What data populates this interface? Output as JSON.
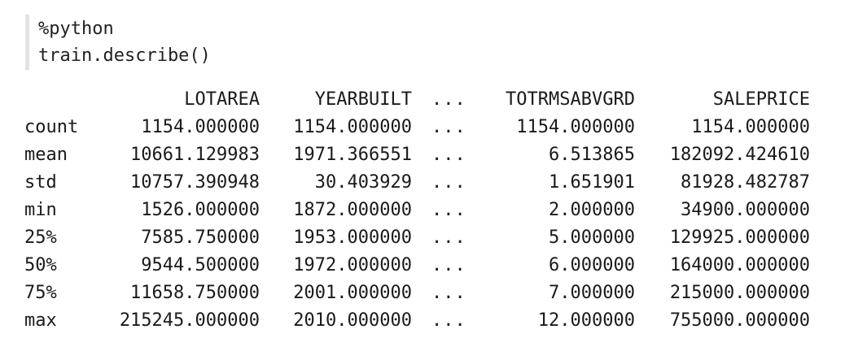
{
  "code_cell": {
    "lines": [
      "%python",
      "train.describe()"
    ]
  },
  "output": {
    "header": {
      "index": "",
      "columns": [
        "LOTAREA",
        "YEARBUILT",
        "...",
        "TOTRMSABVGRD",
        "SALEPRICE"
      ]
    },
    "rows": [
      {
        "index": "count",
        "values": [
          "1154.000000",
          "1154.000000",
          "...",
          "1154.000000",
          "1154.000000"
        ]
      },
      {
        "index": "mean",
        "values": [
          "10661.129983",
          "1971.366551",
          "...",
          "6.513865",
          "182092.424610"
        ]
      },
      {
        "index": "std",
        "values": [
          "10757.390948",
          "30.403929",
          "...",
          "1.651901",
          "81928.482787"
        ]
      },
      {
        "index": "min",
        "values": [
          "1526.000000",
          "1872.000000",
          "...",
          "2.000000",
          "34900.000000"
        ]
      },
      {
        "index": "25%",
        "values": [
          "7585.750000",
          "1953.000000",
          "...",
          "5.000000",
          "129925.000000"
        ]
      },
      {
        "index": "50%",
        "values": [
          "9544.500000",
          "1972.000000",
          "...",
          "6.000000",
          "164000.000000"
        ]
      },
      {
        "index": "75%",
        "values": [
          "11658.750000",
          "2001.000000",
          "...",
          "7.000000",
          "215000.000000"
        ]
      },
      {
        "index": "max",
        "values": [
          "215245.000000",
          "2010.000000",
          "...",
          "12.000000",
          "755000.000000"
        ]
      }
    ]
  }
}
